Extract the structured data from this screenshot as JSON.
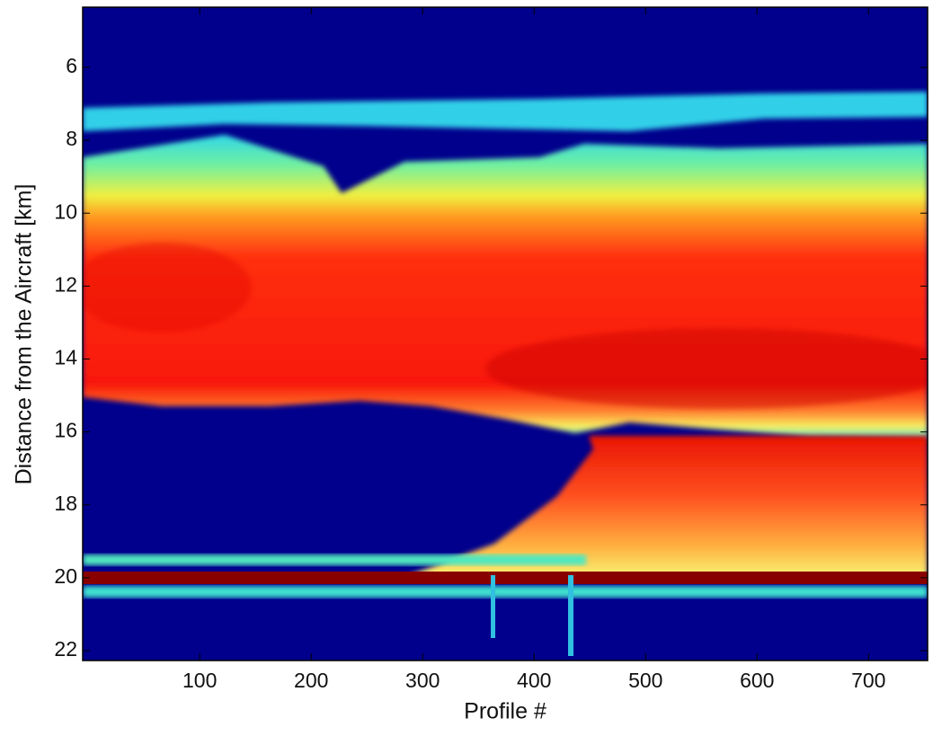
{
  "chart_data": {
    "type": "heatmap",
    "xlabel": "Profile #",
    "ylabel": "Distance from the Aircraft [km]",
    "xlim": [
      -5,
      753
    ],
    "xticks": [
      100,
      200,
      300,
      400,
      500,
      600,
      700
    ],
    "ylim": [
      4.35,
      22.27
    ],
    "yticks": [
      6,
      8,
      10,
      12,
      14,
      16,
      18,
      20,
      22
    ],
    "y_reversed": true
  }
}
